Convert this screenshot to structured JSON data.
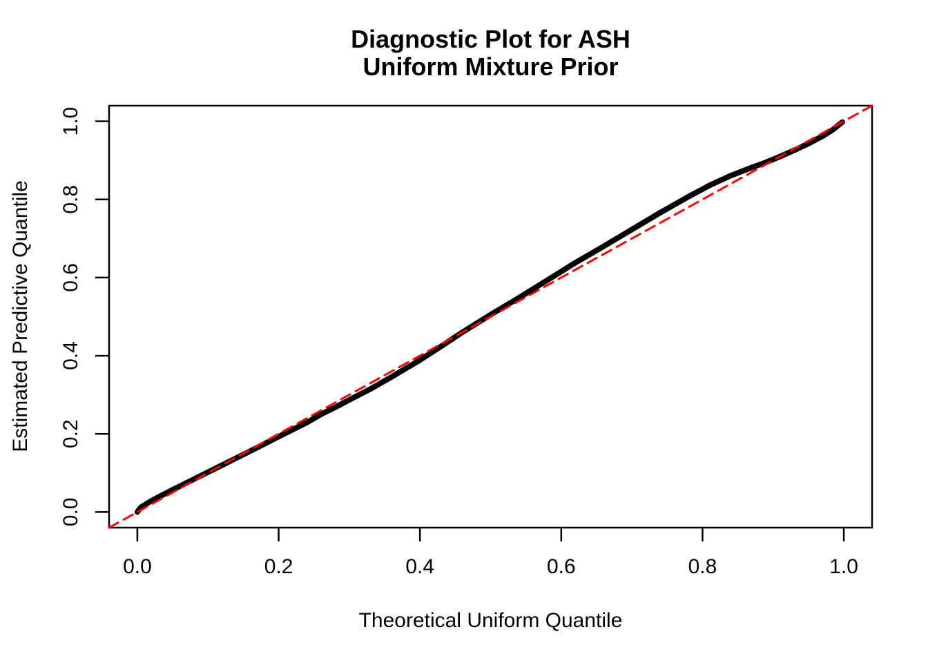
{
  "figure": {
    "background": "#FFFFFF"
  },
  "chart_data": {
    "type": "line",
    "title": "Diagnostic Plot for ASH Uniform Mixture Prior",
    "title_lines": [
      "Diagnostic Plot for ASH",
      "Uniform Mixture Prior"
    ],
    "xlabel": "Theoretical Uniform Quantile",
    "ylabel": "Estimated Predictive Quantile",
    "xlim": [
      -0.04,
      1.04
    ],
    "ylim": [
      -0.04,
      1.04
    ],
    "grid": false,
    "legend": "none",
    "x_ticks": {
      "values": [
        0.0,
        0.2,
        0.4,
        0.6,
        0.8,
        1.0
      ],
      "labels": [
        "0.0",
        "0.2",
        "0.4",
        "0.6",
        "0.8",
        "1.0"
      ]
    },
    "y_ticks": {
      "values": [
        0.0,
        0.2,
        0.4,
        0.6,
        0.8,
        1.0
      ],
      "labels": [
        "0.0",
        "0.2",
        "0.4",
        "0.6",
        "0.8",
        "1.0"
      ]
    },
    "colors": {
      "curve": "#000000",
      "reference_line": "#FF0000",
      "axis": "#000000",
      "background": "#FFFFFF"
    },
    "series": [
      {
        "name": "estimated-predictive-quantile-curve",
        "type": "line",
        "color": "#000000",
        "line_width": 8,
        "dash": null,
        "points": [
          [
            0.0,
            0.0
          ],
          [
            0.005,
            0.012
          ],
          [
            0.02,
            0.029
          ],
          [
            0.05,
            0.057
          ],
          [
            0.08,
            0.084
          ],
          [
            0.12,
            0.12
          ],
          [
            0.16,
            0.156
          ],
          [
            0.2,
            0.193
          ],
          [
            0.24,
            0.229
          ],
          [
            0.26,
            0.25
          ],
          [
            0.28,
            0.268
          ],
          [
            0.3,
            0.287
          ],
          [
            0.33,
            0.315
          ],
          [
            0.36,
            0.346
          ],
          [
            0.4,
            0.389
          ],
          [
            0.43,
            0.424
          ],
          [
            0.46,
            0.46
          ],
          [
            0.5,
            0.505
          ],
          [
            0.54,
            0.548
          ],
          [
            0.58,
            0.593
          ],
          [
            0.62,
            0.638
          ],
          [
            0.66,
            0.68
          ],
          [
            0.7,
            0.723
          ],
          [
            0.74,
            0.766
          ],
          [
            0.78,
            0.807
          ],
          [
            0.81,
            0.836
          ],
          [
            0.84,
            0.861
          ],
          [
            0.87,
            0.882
          ],
          [
            0.89,
            0.895
          ],
          [
            0.91,
            0.91
          ],
          [
            0.93,
            0.926
          ],
          [
            0.95,
            0.943
          ],
          [
            0.97,
            0.962
          ],
          [
            0.985,
            0.979
          ],
          [
            0.993,
            0.991
          ],
          [
            0.998,
            0.998
          ]
        ]
      },
      {
        "name": "identity-reference-line",
        "type": "line",
        "color": "#FF0000",
        "line_width": 3,
        "dash": [
          15,
          9
        ],
        "points": [
          [
            -0.04,
            -0.04
          ],
          [
            1.04,
            1.04
          ]
        ]
      }
    ]
  }
}
